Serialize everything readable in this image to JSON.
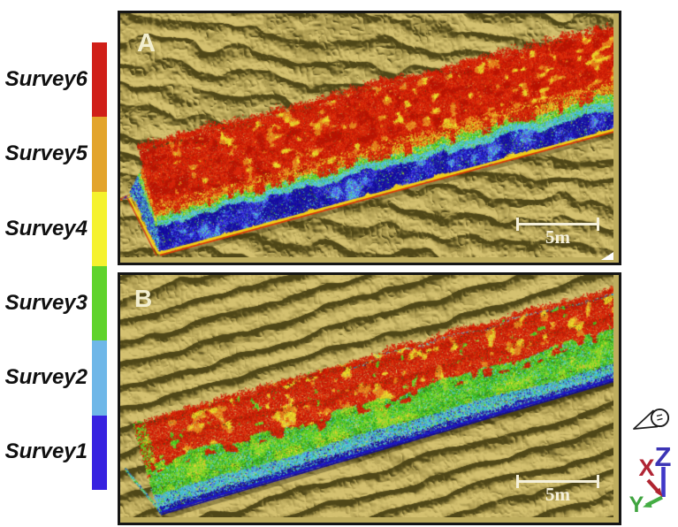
{
  "figure": {
    "background": "#ffffff",
    "legend": {
      "items": [
        {
          "label": "Survey6",
          "color": "#d01f18"
        },
        {
          "label": "Survey5",
          "color": "#e3a42c"
        },
        {
          "label": "Survey4",
          "color": "#f5f22e"
        },
        {
          "label": "Survey3",
          "color": "#5fd32c"
        },
        {
          "label": "Survey2",
          "color": "#6fb7e8"
        },
        {
          "label": "Survey1",
          "color": "#3722e0"
        }
      ]
    },
    "panels": [
      {
        "id": "A",
        "label": "A",
        "scalebar_label": "5m"
      },
      {
        "id": "B",
        "label": "B",
        "scalebar_label": "5m"
      }
    ],
    "axes_widget": {
      "x_label": "X",
      "y_label": "Y",
      "z_label": "Z",
      "x_color": "#b02535",
      "y_color": "#3fa43f",
      "z_color": "#3c35b5"
    },
    "terrain": {
      "light": "#d4c170",
      "mid": "#a4934a",
      "dark": "#4f4718"
    }
  }
}
